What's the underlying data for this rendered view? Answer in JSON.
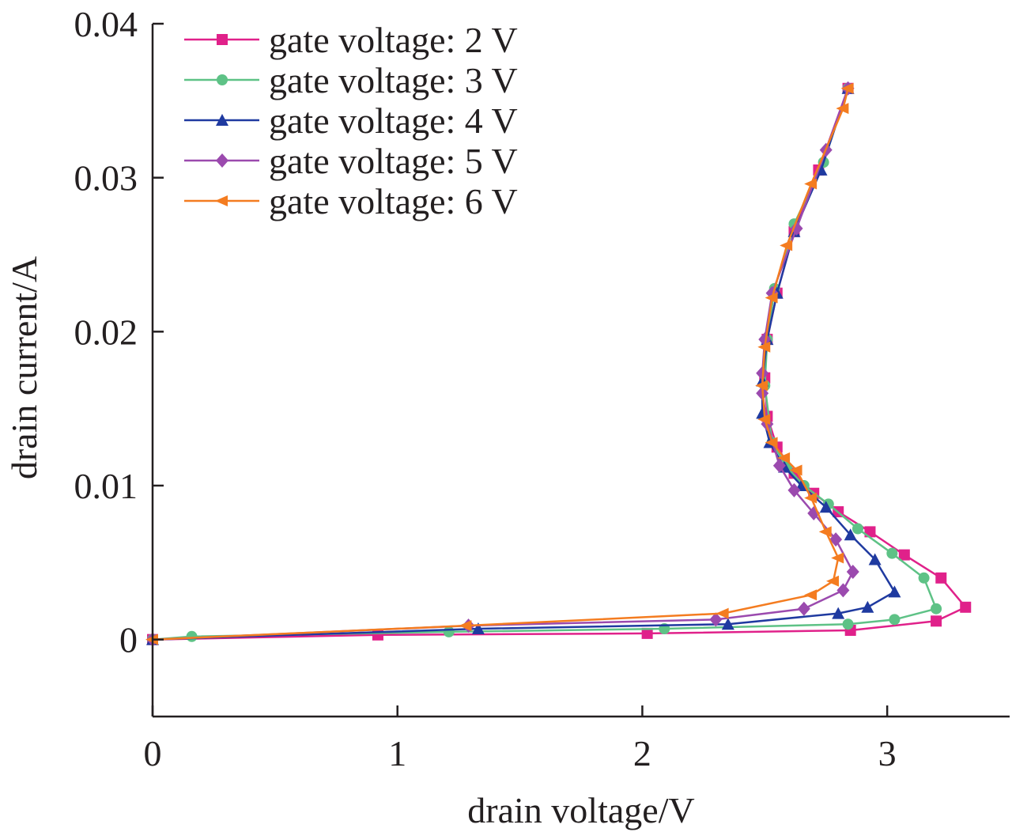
{
  "chart_data": {
    "type": "line",
    "title": "",
    "xlabel": "drain voltage/V",
    "ylabel": "drain current/A",
    "xlim": [
      0,
      3.5
    ],
    "ylim": [
      -0.005,
      0.04
    ],
    "x_ticks": [
      "0",
      "1",
      "2",
      "3"
    ],
    "y_ticks": [
      "0",
      "0.01",
      "0.02",
      "0.03",
      "0.04"
    ],
    "grid": false,
    "legend_position": "top-left",
    "series": [
      {
        "name": "gate voltage: 2 V",
        "color": "#e0218a",
        "marker": "square",
        "x": [
          0,
          0.92,
          2.02,
          2.85,
          3.2,
          3.32,
          3.22,
          3.07,
          2.93,
          2.8,
          2.7,
          2.62,
          2.55,
          2.51,
          2.5,
          2.51,
          2.55,
          2.62,
          2.72,
          2.84
        ],
        "y": [
          0,
          0.0003,
          0.0004,
          0.0006,
          0.0012,
          0.0021,
          0.004,
          0.0055,
          0.007,
          0.0083,
          0.0095,
          0.0108,
          0.0125,
          0.0145,
          0.017,
          0.0195,
          0.0225,
          0.0265,
          0.0305,
          0.0358
        ]
      },
      {
        "name": "gate voltage: 3 V",
        "color": "#5ec286",
        "marker": "circle",
        "x": [
          0,
          0.16,
          1.21,
          2.09,
          2.84,
          3.03,
          3.2,
          3.15,
          3.02,
          2.88,
          2.76,
          2.66,
          2.59,
          2.53,
          2.5,
          2.51,
          2.54,
          2.62,
          2.74,
          2.84
        ],
        "y": [
          0,
          0.0002,
          0.0005,
          0.0007,
          0.001,
          0.0013,
          0.002,
          0.004,
          0.0056,
          0.0072,
          0.0088,
          0.01,
          0.0112,
          0.0128,
          0.0165,
          0.0195,
          0.0228,
          0.027,
          0.031,
          0.0358
        ]
      },
      {
        "name": "gate voltage: 4 V",
        "color": "#1f3aa0",
        "marker": "triangle",
        "x": [
          0,
          1.33,
          2.35,
          2.8,
          2.92,
          3.03,
          2.95,
          2.85,
          2.75,
          2.65,
          2.58,
          2.52,
          2.49,
          2.49,
          2.51,
          2.55,
          2.62,
          2.73,
          2.84
        ],
        "y": [
          0,
          0.0007,
          0.001,
          0.0017,
          0.0021,
          0.0031,
          0.0052,
          0.0068,
          0.0086,
          0.01,
          0.0112,
          0.0128,
          0.0147,
          0.0168,
          0.0195,
          0.0225,
          0.0265,
          0.0305,
          0.0358
        ]
      },
      {
        "name": "gate voltage: 5 V",
        "color": "#9b4aae",
        "marker": "diamond",
        "x": [
          0,
          1.29,
          2.3,
          2.66,
          2.82,
          2.86,
          2.79,
          2.7,
          2.62,
          2.56,
          2.51,
          2.49,
          2.49,
          2.5,
          2.53,
          2.63,
          2.75,
          2.84
        ],
        "y": [
          0,
          0.0009,
          0.0013,
          0.002,
          0.0032,
          0.0044,
          0.0065,
          0.0082,
          0.0097,
          0.0113,
          0.014,
          0.016,
          0.0173,
          0.0195,
          0.0225,
          0.0267,
          0.0318,
          0.0358
        ]
      },
      {
        "name": "gate voltage: 6 V",
        "color": "#f47c20",
        "marker": "left-triangle",
        "x": [
          0,
          1.28,
          2.33,
          2.69,
          2.78,
          2.8,
          2.75,
          2.69,
          2.63,
          2.58,
          2.53,
          2.5,
          2.49,
          2.5,
          2.53,
          2.59,
          2.69,
          2.82,
          2.84
        ],
        "y": [
          0,
          0.0009,
          0.0017,
          0.0029,
          0.0038,
          0.0053,
          0.007,
          0.0092,
          0.011,
          0.0118,
          0.0128,
          0.0143,
          0.0165,
          0.019,
          0.0222,
          0.0256,
          0.0296,
          0.0345,
          0.0358
        ]
      }
    ]
  }
}
